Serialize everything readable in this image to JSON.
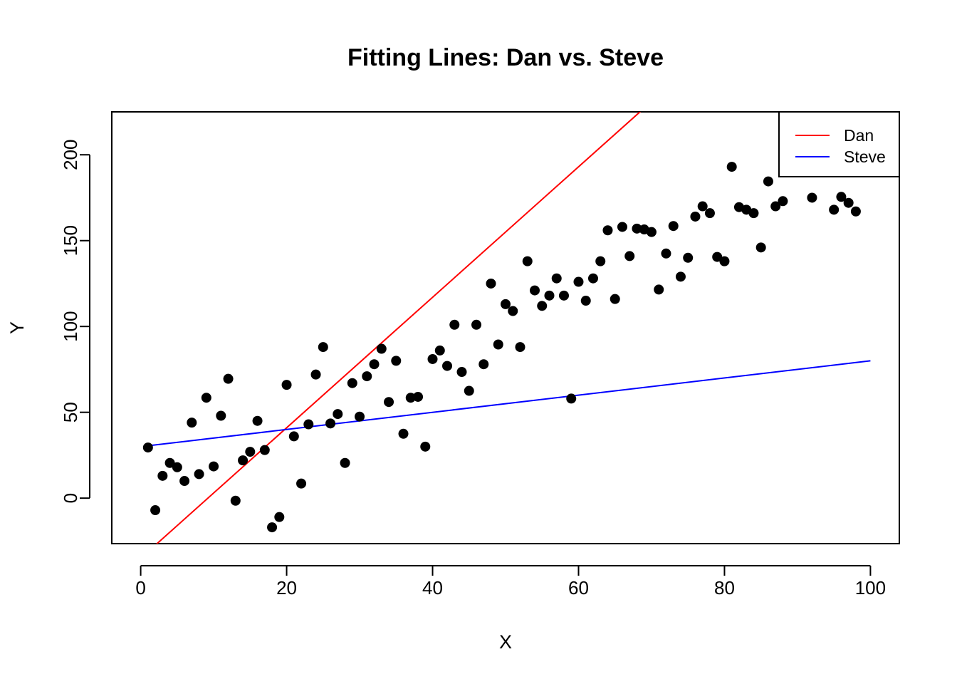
{
  "chart_data": {
    "type": "scatter",
    "title": "Fitting Lines: Dan vs. Steve",
    "xlabel": "X",
    "ylabel": "Y",
    "xlim": [
      -3.96,
      103.96
    ],
    "ylim": [
      -26.5,
      225
    ],
    "xticks": [
      0,
      20,
      40,
      60,
      80,
      100
    ],
    "yticks": [
      0,
      50,
      100,
      150,
      200
    ],
    "grid": false,
    "legend_position": "top-right",
    "points": {
      "x": [
        1,
        2,
        3,
        4,
        5,
        6,
        7,
        8,
        9,
        10,
        11,
        12,
        13,
        14,
        15,
        16,
        17,
        18,
        19,
        20,
        21,
        22,
        23,
        24,
        25,
        26,
        27,
        28,
        29,
        30,
        31,
        32,
        33,
        34,
        35,
        36,
        37,
        38,
        39,
        40,
        41,
        42,
        43,
        44,
        45,
        46,
        47,
        48,
        49,
        50,
        51,
        52,
        53,
        54,
        55,
        56,
        57,
        58,
        59,
        60,
        61,
        62,
        63,
        64,
        65,
        66,
        67,
        68,
        69,
        70,
        71,
        72,
        73,
        74,
        75,
        76,
        77,
        78,
        79,
        80,
        81,
        82,
        83,
        84,
        85,
        86,
        87,
        88,
        92,
        95,
        96,
        97,
        98
      ],
      "y": [
        29.5,
        -7,
        13,
        20.5,
        18,
        10,
        44,
        14,
        58.5,
        18.5,
        48,
        69.5,
        -1.5,
        22,
        27,
        45,
        28,
        -17,
        -11,
        66,
        36,
        8.5,
        43,
        72,
        88,
        43.5,
        49,
        20.5,
        67,
        47.5,
        71,
        78,
        87,
        56,
        80,
        37.5,
        58.5,
        59,
        30,
        81,
        86,
        77,
        101,
        73.5,
        62.5,
        101,
        78,
        125,
        89.5,
        113,
        109,
        88,
        138,
        121,
        112,
        118,
        128,
        118,
        58,
        126,
        115,
        128,
        138,
        156,
        116,
        158,
        141,
        157,
        156.5,
        155,
        121.5,
        142.5,
        158.5,
        129,
        140,
        164,
        170,
        166,
        140.5,
        138,
        193,
        169.5,
        168,
        166,
        146,
        184.5,
        170,
        173,
        175,
        168,
        175.5,
        172,
        167
      ],
      "color": "#000000"
    },
    "series": [
      {
        "name": "Dan",
        "type": "line",
        "intercept": -35,
        "slope": 3.8,
        "x_range": [
          1,
          100
        ],
        "color": "#ff0000"
      },
      {
        "name": "Steve",
        "type": "line",
        "intercept": 30,
        "slope": 0.5,
        "x_range": [
          1,
          100
        ],
        "color": "#0000ff"
      }
    ]
  }
}
